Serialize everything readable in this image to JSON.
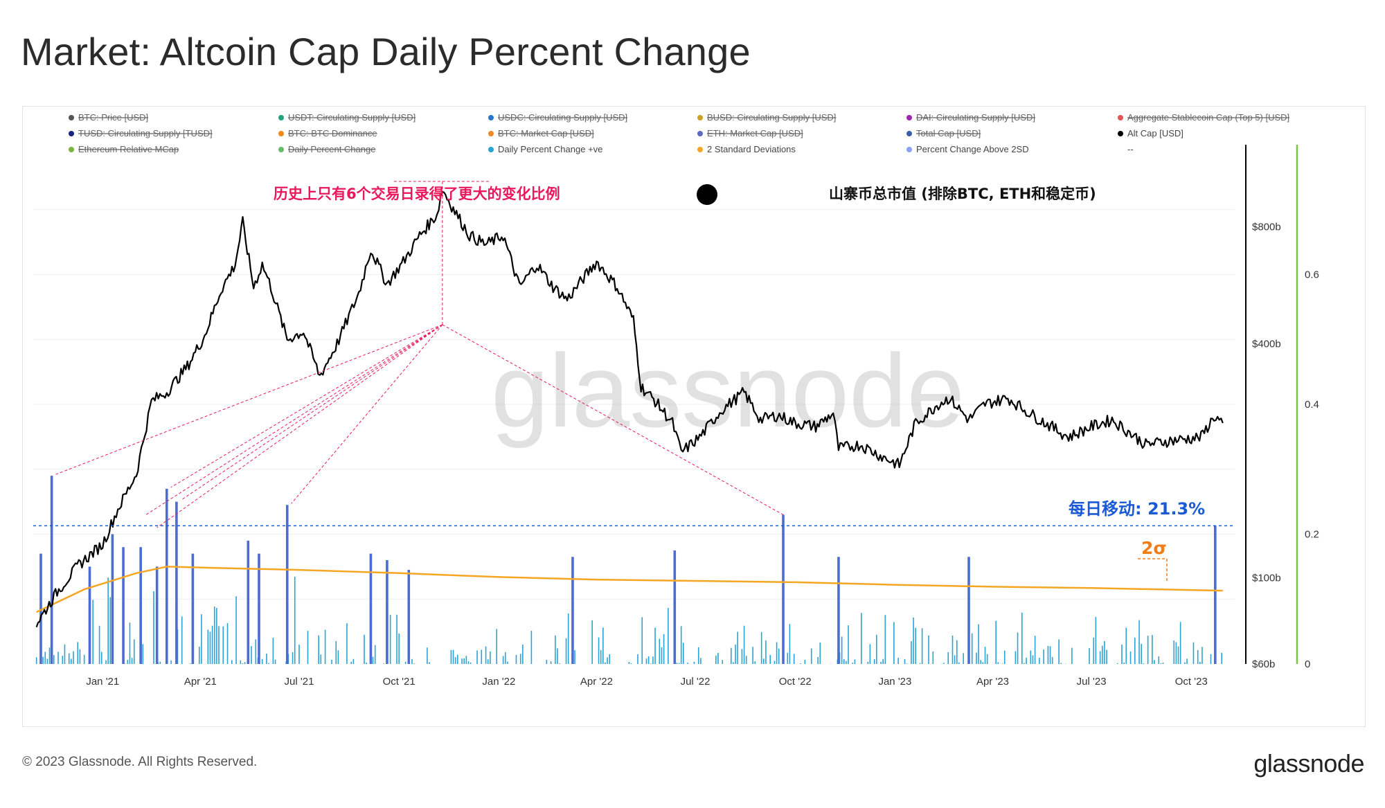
{
  "title": "Market: Altcoin Cap Daily Percent Change",
  "footer": {
    "copyright": "© 2023 Glassnode. All Rights Reserved.",
    "logo": "glassnode"
  },
  "watermark": "glassnode",
  "legend": [
    {
      "label": "BTC: Price [USD]",
      "color": "#555555",
      "active": false
    },
    {
      "label": "USDT: Circulating Supply [USD]",
      "color": "#26a17b",
      "active": false
    },
    {
      "label": "USDC: Circulating Supply [USD]",
      "color": "#2775ca",
      "active": false
    },
    {
      "label": "BUSD: Circulating Supply [USD]",
      "color": "#c9a227",
      "active": false
    },
    {
      "label": "DAI: Circulating Supply [USD]",
      "color": "#9c27b0",
      "active": false
    },
    {
      "label": "Aggregate Stablecoin Cap (Top 5) [USD]",
      "color": "#e05555",
      "active": false
    },
    {
      "label": "TUSD: Circulating Supply [TUSD]",
      "color": "#1a237e",
      "active": false
    },
    {
      "label": "BTC: BTC Dominance",
      "color": "#ef8b1c",
      "active": false
    },
    {
      "label": "BTC: Market Cap [USD]",
      "color": "#f08a24",
      "active": false
    },
    {
      "label": "ETH: Market Cap [USD]",
      "color": "#5c6bc0",
      "active": false
    },
    {
      "label": "Total Cap [USD]",
      "color": "#3a5fa8",
      "active": false
    },
    {
      "label": "Alt Cap [USD]",
      "color": "#000000",
      "active": true
    },
    {
      "label": "Ethereum Relative MCap",
      "color": "#7cb342",
      "active": false
    },
    {
      "label": "Daily Percent Change",
      "color": "#66bb6a",
      "active": false
    },
    {
      "label": "Daily Percent Change +ve",
      "color": "#29a3d6",
      "active": true
    },
    {
      "label": "2 Standard Deviations",
      "color": "#f5a623",
      "active": true
    },
    {
      "label": "Percent Change Above 2SD",
      "color": "#8c9eff",
      "active": true
    },
    {
      "label": "--",
      "color": "",
      "active": true
    }
  ],
  "annotations": {
    "left_note": "历史上只有6个交易日录得了更大的变化比例",
    "right_note": "山寨币总市值 (排除BTC, ETH和稳定币)",
    "daily_move": "每日移动: 21.3%",
    "sigma": "2σ"
  },
  "colors": {
    "alt_cap": "#000000",
    "positive_change": "#29a3d6",
    "above_2sd": "#4a6cd4",
    "two_sd": "#f5a623",
    "annotation_pink": "#e8185a",
    "annotation_blue": "#1a5ad6",
    "annotation_orange": "#f07d1a",
    "right_axis_line": "#7cc242"
  },
  "chart_data": {
    "type": "line",
    "x_ticks": [
      "Jan '21",
      "Apr '21",
      "Jul '21",
      "Oct '21",
      "Jan '22",
      "Apr '22",
      "Jul '22",
      "Oct '22",
      "Jan '23",
      "Apr '23",
      "Jul '23",
      "Oct '23"
    ],
    "y_left": {
      "scale": "log",
      "ticks": [
        "$60b",
        "$100b",
        "$400b",
        "$800b"
      ],
      "tick_values": [
        60,
        100,
        400,
        800
      ],
      "range": [
        60,
        1300
      ]
    },
    "y_right": {
      "scale": "linear",
      "ticks": [
        "0",
        "0.2",
        "0.4",
        "0.6"
      ],
      "tick_values": [
        0,
        0.2,
        0.4,
        0.6
      ],
      "range": [
        0,
        0.8
      ]
    },
    "reference_line": {
      "value": 0.213
    },
    "series": [
      {
        "name": "Alt Cap [USD]",
        "axis": "left",
        "points": [
          [
            "2020-11-01",
            76
          ],
          [
            "2020-11-20",
            92
          ],
          [
            "2020-12-10",
            108
          ],
          [
            "2021-01-01",
            122
          ],
          [
            "2021-01-15",
            150
          ],
          [
            "2021-02-01",
            185
          ],
          [
            "2021-02-15",
            285
          ],
          [
            "2021-03-01",
            300
          ],
          [
            "2021-03-20",
            350
          ],
          [
            "2021-04-05",
            420
          ],
          [
            "2021-04-20",
            550
          ],
          [
            "2021-05-03",
            640
          ],
          [
            "2021-05-10",
            820
          ],
          [
            "2021-05-20",
            560
          ],
          [
            "2021-05-28",
            640
          ],
          [
            "2021-06-05",
            560
          ],
          [
            "2021-06-20",
            410
          ],
          [
            "2021-07-05",
            430
          ],
          [
            "2021-07-20",
            330
          ],
          [
            "2021-08-05",
            400
          ],
          [
            "2021-08-25",
            540
          ],
          [
            "2021-09-05",
            700
          ],
          [
            "2021-09-20",
            570
          ],
          [
            "2021-10-05",
            650
          ],
          [
            "2021-10-20",
            760
          ],
          [
            "2021-11-05",
            860
          ],
          [
            "2021-11-10",
            1000
          ],
          [
            "2021-11-20",
            890
          ],
          [
            "2021-12-05",
            760
          ],
          [
            "2021-12-20",
            720
          ],
          [
            "2022-01-05",
            760
          ],
          [
            "2022-01-20",
            560
          ],
          [
            "2022-02-05",
            640
          ],
          [
            "2022-02-20",
            560
          ],
          [
            "2022-03-05",
            520
          ],
          [
            "2022-03-20",
            590
          ],
          [
            "2022-04-01",
            650
          ],
          [
            "2022-04-20",
            560
          ],
          [
            "2022-05-05",
            460
          ],
          [
            "2022-05-12",
            310
          ],
          [
            "2022-05-25",
            285
          ],
          [
            "2022-06-10",
            250
          ],
          [
            "2022-06-18",
            210
          ],
          [
            "2022-07-05",
            230
          ],
          [
            "2022-07-25",
            270
          ],
          [
            "2022-08-15",
            300
          ],
          [
            "2022-08-30",
            255
          ],
          [
            "2022-09-15",
            262
          ],
          [
            "2022-10-01",
            250
          ],
          [
            "2022-10-20",
            245
          ],
          [
            "2022-11-05",
            265
          ],
          [
            "2022-11-10",
            215
          ],
          [
            "2022-11-30",
            220
          ],
          [
            "2022-12-20",
            205
          ],
          [
            "2023-01-05",
            195
          ],
          [
            "2023-01-20",
            250
          ],
          [
            "2023-02-10",
            280
          ],
          [
            "2023-02-20",
            290
          ],
          [
            "2023-03-10",
            255
          ],
          [
            "2023-03-25",
            280
          ],
          [
            "2023-04-15",
            290
          ],
          [
            "2023-05-05",
            265
          ],
          [
            "2023-06-10",
            230
          ],
          [
            "2023-07-01",
            245
          ],
          [
            "2023-07-20",
            255
          ],
          [
            "2023-08-20",
            220
          ],
          [
            "2023-09-10",
            225
          ],
          [
            "2023-10-10",
            230
          ],
          [
            "2023-10-22",
            260
          ],
          [
            "2023-10-30",
            250
          ]
        ]
      },
      {
        "name": "2 Standard Deviations",
        "axis": "right",
        "points": [
          [
            "2020-11-01",
            0.08
          ],
          [
            "2020-12-15",
            0.115
          ],
          [
            "2021-02-01",
            0.14
          ],
          [
            "2021-03-01",
            0.15
          ],
          [
            "2021-04-15",
            0.148
          ],
          [
            "2021-07-01",
            0.145
          ],
          [
            "2021-10-01",
            0.14
          ],
          [
            "2022-01-01",
            0.134
          ],
          [
            "2022-04-01",
            0.13
          ],
          [
            "2022-07-01",
            0.128
          ],
          [
            "2022-10-01",
            0.126
          ],
          [
            "2023-01-01",
            0.122
          ],
          [
            "2023-04-01",
            0.119
          ],
          [
            "2023-07-01",
            0.117
          ],
          [
            "2023-10-30",
            0.113
          ]
        ]
      },
      {
        "name": "Percent Change Above 2SD",
        "axis": "right",
        "type": "bar",
        "points": [
          [
            "2020-11-05",
            0.17
          ],
          [
            "2020-11-15",
            0.29
          ],
          [
            "2020-12-20",
            0.15
          ],
          [
            "2021-01-10",
            0.2
          ],
          [
            "2021-01-20",
            0.18
          ],
          [
            "2021-02-05",
            0.18
          ],
          [
            "2021-02-20",
            0.15
          ],
          [
            "2021-03-01",
            0.27
          ],
          [
            "2021-03-10",
            0.25
          ],
          [
            "2021-03-25",
            0.17
          ],
          [
            "2021-05-15",
            0.19
          ],
          [
            "2021-05-25",
            0.17
          ],
          [
            "2021-06-20",
            0.245
          ],
          [
            "2021-09-05",
            0.17
          ],
          [
            "2021-09-20",
            0.16
          ],
          [
            "2021-10-10",
            0.145
          ],
          [
            "2022-03-10",
            0.165
          ],
          [
            "2022-06-12",
            0.175
          ],
          [
            "2022-09-20",
            0.23
          ],
          [
            "2022-11-10",
            0.165
          ],
          [
            "2023-03-10",
            0.165
          ],
          [
            "2023-10-23",
            0.213
          ]
        ]
      }
    ]
  }
}
